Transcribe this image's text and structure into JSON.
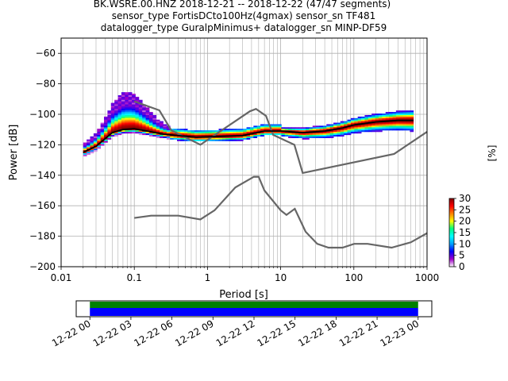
{
  "title_lines": [
    "BK.WSRE.00.HNZ   2018-12-21 -- 2018-12-22  (47/47 segments)",
    "sensor_type FortisDCto100Hz(4gmax) sensor_sn TF481",
    "datalogger_type GuralpMinimus+ datalogger_sn MINP-DF59"
  ],
  "colors": {
    "nlnm_nhnm": "#666666",
    "mean_curve": "#000000",
    "grid": "#b0b0b0",
    "timeline_top": "#008000",
    "timeline_bottom": "#0000ff"
  },
  "colormap": [
    "#ffffff",
    "#a000c8",
    "#0000ff",
    "#00a0ff",
    "#00ffff",
    "#00ff80",
    "#ffff00",
    "#ff8000",
    "#ff0000",
    "#800000"
  ],
  "chart_data": [
    {
      "type": "heatmap",
      "description_kind": "probabilistic power spectral density",
      "xlabel": "Period [s]",
      "ylabel": "Power [dB]",
      "xscale": "log",
      "xlim": [
        0.01,
        1000
      ],
      "ylim": [
        -200,
        -50
      ],
      "xticks": [
        0.01,
        0.1,
        1,
        10,
        100,
        1000
      ],
      "xtick_labels": [
        "0.01",
        "0.1",
        "1",
        "10",
        "100",
        "1000"
      ],
      "yticks": [
        -200,
        -180,
        -160,
        -140,
        -120,
        -100,
        -80,
        -60
      ],
      "ytick_labels": [
        "−200",
        "−180",
        "−160",
        "−140",
        "−120",
        "−100",
        "−80",
        "−60"
      ],
      "grid": true,
      "colorbar": {
        "label": "[%]",
        "range": [
          0,
          30
        ],
        "ticks": [
          0,
          5,
          10,
          15,
          20,
          25,
          30
        ],
        "tick_labels": [
          "0",
          "5",
          "10",
          "15",
          "20",
          "25",
          "30"
        ]
      },
      "new_high_noise_model": [
        [
          0.1,
          -168
        ],
        [
          0.17,
          -166.5
        ],
        [
          0.4,
          -166.5
        ],
        [
          0.8,
          -169
        ],
        [
          1.25,
          -163
        ],
        [
          2.4,
          -148
        ],
        [
          4.3,
          -141
        ],
        [
          5.0,
          -141
        ],
        [
          6.0,
          -150
        ],
        [
          10,
          -163
        ],
        [
          12,
          -166
        ],
        [
          15.6,
          -162
        ],
        [
          21.9,
          -177
        ],
        [
          31.6,
          -185
        ],
        [
          45,
          -187.5
        ],
        [
          70,
          -187.5
        ],
        [
          101,
          -185
        ],
        [
          154,
          -185
        ],
        [
          328,
          -187.5
        ],
        [
          600,
          -184
        ],
        [
          1000,
          -178
        ]
      ],
      "new_low_noise_model": [
        [
          0.1,
          -91.5
        ],
        [
          0.22,
          -97.4
        ],
        [
          0.32,
          -110.5
        ],
        [
          0.8,
          -120
        ],
        [
          3.8,
          -98
        ],
        [
          4.6,
          -96.5
        ],
        [
          6.3,
          -101
        ],
        [
          7.9,
          -113.5
        ],
        [
          15.4,
          -120
        ],
        [
          20,
          -138.5
        ],
        [
          354.8,
          -126
        ],
        [
          1000,
          -111.5
        ]
      ],
      "mean_psd": [
        [
          0.02,
          -125
        ],
        [
          0.03,
          -121
        ],
        [
          0.04,
          -116
        ],
        [
          0.05,
          -112
        ],
        [
          0.07,
          -110
        ],
        [
          0.1,
          -109.5
        ],
        [
          0.15,
          -111
        ],
        [
          0.25,
          -113
        ],
        [
          0.4,
          -114
        ],
        [
          0.7,
          -115
        ],
        [
          1.5,
          -114.5
        ],
        [
          3,
          -114
        ],
        [
          6,
          -111
        ],
        [
          10,
          -111
        ],
        [
          20,
          -112
        ],
        [
          40,
          -111
        ],
        [
          70,
          -109
        ],
        [
          100,
          -107
        ],
        [
          200,
          -105
        ],
        [
          400,
          -104
        ],
        [
          650,
          -104
        ]
      ],
      "density_bands": [
        {
          "period_range": [
            0.02,
            0.3
          ],
          "db_range": [
            -126,
            -88
          ],
          "peak_percent": 30
        },
        {
          "period_range": [
            0.3,
            1.0
          ],
          "db_range": [
            -118,
            -110
          ],
          "peak_percent": 20
        },
        {
          "period_range": [
            1.0,
            10
          ],
          "db_range": [
            -117,
            -110
          ],
          "peak_percent": 30
        },
        {
          "period_range": [
            10,
            650
          ],
          "db_range": [
            -114,
            -100
          ],
          "peak_percent": 30
        }
      ]
    },
    {
      "type": "bar",
      "description_kind": "data availability timeline",
      "x_tick_labels": [
        "12-22 00",
        "12-22 03",
        "12-22 06",
        "12-22 09",
        "12-22 12",
        "12-22 15",
        "12-22 18",
        "12-22 21",
        "12-23 00"
      ],
      "xlim_hours": [
        -1.0,
        25.0
      ],
      "coverage_start_hour": 0,
      "coverage_end_hour": 24
    }
  ]
}
